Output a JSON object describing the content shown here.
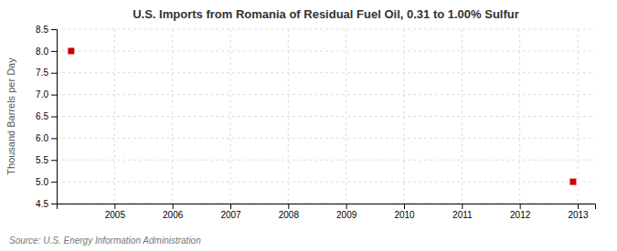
{
  "chart_data": {
    "type": "scatter",
    "title": "U.S. Imports from Romania of Residual Fuel Oil, 0.31 to 1.00% Sulfur",
    "ylabel": "Thousand Barrels per Day",
    "annotation": "Source: U.S. Energy Information Administration",
    "x": [
      2004.25,
      2012.92
    ],
    "values": [
      8.0,
      5.0
    ],
    "color": "#CC0000",
    "marker": "square",
    "xlim": [
      2004.0,
      2013.3
    ],
    "ylim": [
      4.5,
      8.5
    ],
    "xticks": [
      2005,
      2006,
      2007,
      2008,
      2009,
      2010,
      2011,
      2012,
      2013
    ],
    "yticks": [
      4.5,
      {
        "value": 5.0,
        "label": "5.0"
      },
      5.5,
      {
        "value": 6.0,
        "label": "6.0"
      },
      6.5,
      {
        "value": 7.0,
        "label": "7.0"
      },
      7.5,
      {
        "value": 8.0,
        "label": "8.0"
      },
      8.5
    ],
    "grid": true
  }
}
